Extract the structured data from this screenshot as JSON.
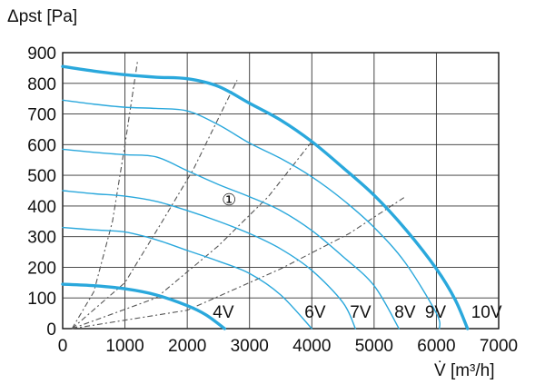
{
  "chart_data": {
    "type": "line",
    "ylabel": "Δpst [Pa]",
    "xlabel": "V̇ [m³/h]",
    "xlim": [
      0,
      7000
    ],
    "ylim": [
      0,
      900
    ],
    "grid": true,
    "x_ticks": [
      0,
      1000,
      2000,
      3000,
      4000,
      5000,
      6000,
      7000
    ],
    "y_ticks": [
      0,
      100,
      200,
      300,
      400,
      500,
      600,
      700,
      800,
      900
    ],
    "series": [
      {
        "name": "10V",
        "role": "max",
        "color": "#2aa8dc",
        "points": [
          [
            0,
            855
          ],
          [
            500,
            840
          ],
          [
            1000,
            828
          ],
          [
            1500,
            820
          ],
          [
            2000,
            815
          ],
          [
            2500,
            790
          ],
          [
            3000,
            735
          ],
          [
            3500,
            680
          ],
          [
            4000,
            610
          ],
          [
            4500,
            525
          ],
          [
            5000,
            435
          ],
          [
            5500,
            325
          ],
          [
            6000,
            195
          ],
          [
            6300,
            95
          ],
          [
            6500,
            0
          ]
        ]
      },
      {
        "name": "9V",
        "role": "normal",
        "color": "#2aa8dc",
        "points": [
          [
            0,
            745
          ],
          [
            500,
            732
          ],
          [
            1000,
            722
          ],
          [
            1500,
            718
          ],
          [
            2000,
            710
          ],
          [
            2500,
            665
          ],
          [
            3000,
            605
          ],
          [
            3500,
            555
          ],
          [
            4000,
            495
          ],
          [
            4500,
            420
          ],
          [
            5000,
            330
          ],
          [
            5500,
            215
          ],
          [
            6000,
            50
          ],
          [
            6050,
            0
          ]
        ]
      },
      {
        "name": "8V",
        "role": "normal",
        "color": "#2aa8dc",
        "points": [
          [
            0,
            585
          ],
          [
            500,
            575
          ],
          [
            1000,
            567
          ],
          [
            1500,
            560
          ],
          [
            2000,
            515
          ],
          [
            2500,
            470
          ],
          [
            3000,
            430
          ],
          [
            3500,
            385
          ],
          [
            4000,
            320
          ],
          [
            4500,
            235
          ],
          [
            5000,
            140
          ],
          [
            5400,
            0
          ]
        ]
      },
      {
        "name": "7V",
        "role": "normal",
        "color": "#2aa8dc",
        "points": [
          [
            0,
            450
          ],
          [
            500,
            440
          ],
          [
            1000,
            432
          ],
          [
            1500,
            415
          ],
          [
            2000,
            385
          ],
          [
            2500,
            350
          ],
          [
            3000,
            310
          ],
          [
            3500,
            260
          ],
          [
            4000,
            190
          ],
          [
            4500,
            85
          ],
          [
            4700,
            0
          ]
        ]
      },
      {
        "name": "6V",
        "role": "normal",
        "color": "#2aa8dc",
        "points": [
          [
            0,
            330
          ],
          [
            500,
            322
          ],
          [
            1000,
            315
          ],
          [
            1500,
            290
          ],
          [
            2000,
            255
          ],
          [
            2500,
            220
          ],
          [
            3000,
            180
          ],
          [
            3500,
            110
          ],
          [
            4000,
            0
          ]
        ]
      },
      {
        "name": "4V",
        "role": "max",
        "color": "#2aa8dc",
        "points": [
          [
            0,
            145
          ],
          [
            500,
            140
          ],
          [
            1000,
            130
          ],
          [
            1500,
            110
          ],
          [
            2000,
            75
          ],
          [
            2300,
            45
          ],
          [
            2600,
            0
          ]
        ]
      }
    ],
    "system_curves": [
      {
        "points": [
          [
            150,
            0
          ],
          [
            500,
            120
          ],
          [
            800,
            350
          ],
          [
            1000,
            600
          ],
          [
            1200,
            870
          ]
        ]
      },
      {
        "points": [
          [
            150,
            0
          ],
          [
            1000,
            150
          ],
          [
            1600,
            350
          ],
          [
            2100,
            520
          ],
          [
            2800,
            810
          ]
        ]
      },
      {
        "points": [
          [
            150,
            0
          ],
          [
            1500,
            100
          ],
          [
            2500,
            270
          ],
          [
            3300,
            430
          ],
          [
            4000,
            610
          ]
        ]
      },
      {
        "points": [
          [
            150,
            0
          ],
          [
            2000,
            60
          ],
          [
            3500,
            195
          ],
          [
            4600,
            310
          ],
          [
            5500,
            430
          ]
        ]
      }
    ],
    "curve_labels": [
      "4V",
      "6V",
      "7V",
      "8V",
      "9V",
      "10V"
    ],
    "marker": {
      "text": "①",
      "x": 2700,
      "y": 420
    }
  }
}
